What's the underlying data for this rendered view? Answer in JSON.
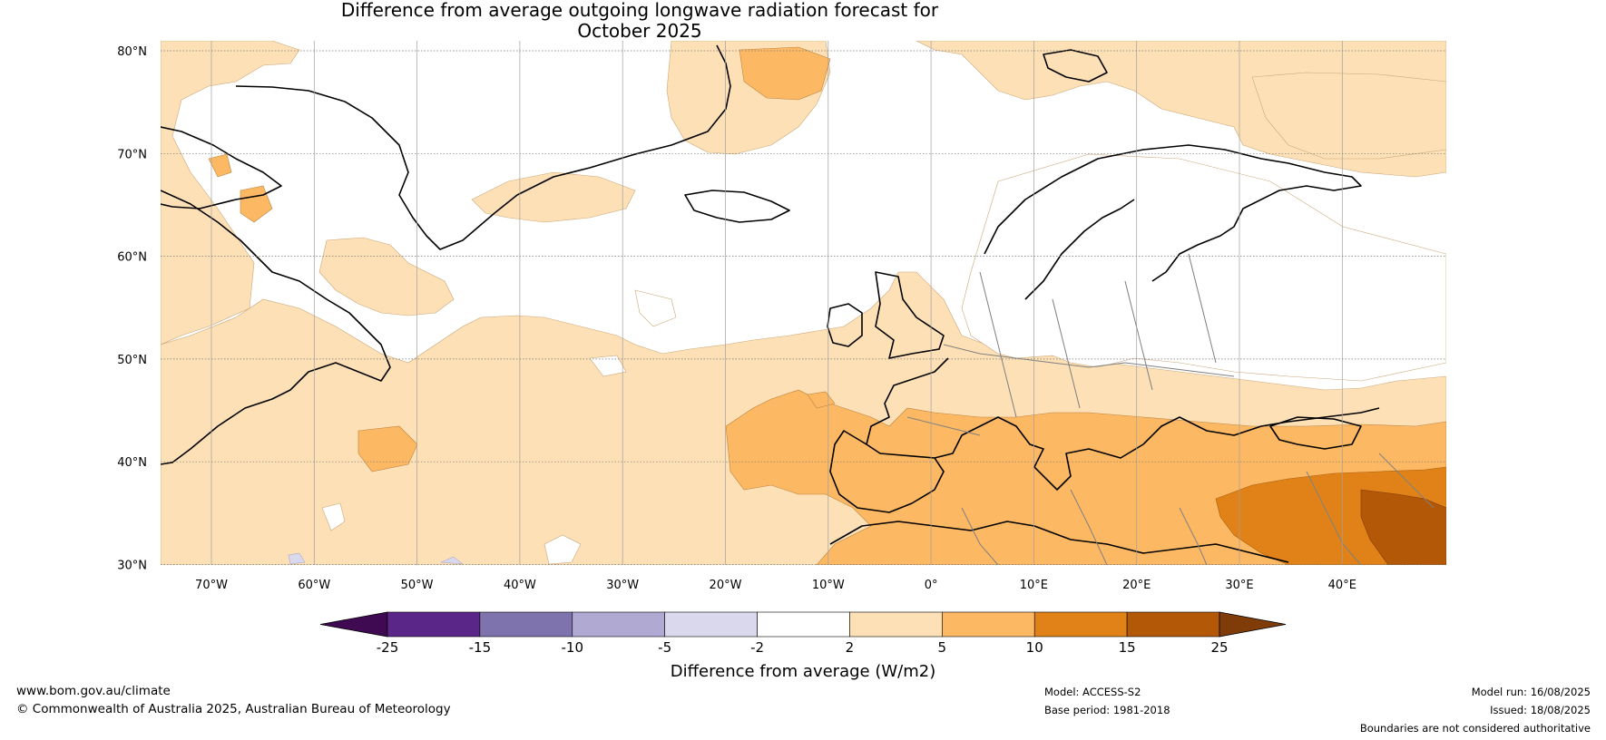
{
  "title_line1": "Difference from average outgoing longwave radiation forecast for",
  "title_line2": "October 2025",
  "lat_labels": [
    {
      "lat": 80,
      "label": "80°N"
    },
    {
      "lat": 70,
      "label": "70°N"
    },
    {
      "lat": 60,
      "label": "60°N"
    },
    {
      "lat": 50,
      "label": "50°N"
    },
    {
      "lat": 40,
      "label": "40°N"
    },
    {
      "lat": 30,
      "label": "30°N"
    }
  ],
  "lon_labels": [
    {
      "lon": -70,
      "label": "70°W"
    },
    {
      "lon": -60,
      "label": "60°W"
    },
    {
      "lon": -50,
      "label": "50°W"
    },
    {
      "lon": -40,
      "label": "40°W"
    },
    {
      "lon": -30,
      "label": "30°W"
    },
    {
      "lon": -20,
      "label": "20°W"
    },
    {
      "lon": -10,
      "label": "10°W"
    },
    {
      "lon": 0,
      "label": "0°"
    },
    {
      "lon": 10,
      "label": "10°E"
    },
    {
      "lon": 20,
      "label": "20°E"
    },
    {
      "lon": 30,
      "label": "30°E"
    },
    {
      "lon": 40,
      "label": "40°E"
    }
  ],
  "colorbar": {
    "title": "Difference from average (W/m2)",
    "bins": [
      {
        "color": "#3f0a52"
      },
      {
        "color": "#5a2687"
      },
      {
        "color": "#7f73ae"
      },
      {
        "color": "#b0a9d2"
      },
      {
        "color": "#d9d8ec"
      },
      {
        "color": "#ffffff"
      },
      {
        "color": "#fde0b6"
      },
      {
        "color": "#fdb863"
      },
      {
        "color": "#e08218"
      },
      {
        "color": "#b35806"
      },
      {
        "color": "#7f3b08"
      }
    ],
    "ticks": [
      "-25",
      "-15",
      "-10",
      "-5",
      "-2",
      "2",
      "5",
      "10",
      "15",
      "25"
    ]
  },
  "footer": {
    "website": "www.bom.gov.au/climate",
    "copyright": "© Commonwealth of Australia 2025, Australian Bureau of Meteorology",
    "model": "Model: ACCESS-S2",
    "base_period": "Base period: 1981-2018",
    "model_run": "Model run: 16/08/2025",
    "issued": "Issued: 18/08/2025",
    "disclaimer": "Boundaries are not considered authoritative"
  },
  "map_colors": {
    "ocean_land_base": "#ffffff",
    "light_orange": "#fde0b6",
    "mid_orange": "#fdb863",
    "dark_orange": "#e08218",
    "brown": "#b35806",
    "light_purple": "#d9d8ec",
    "coastline": "#000000",
    "borders": "#808080",
    "gridline": "#999999"
  }
}
